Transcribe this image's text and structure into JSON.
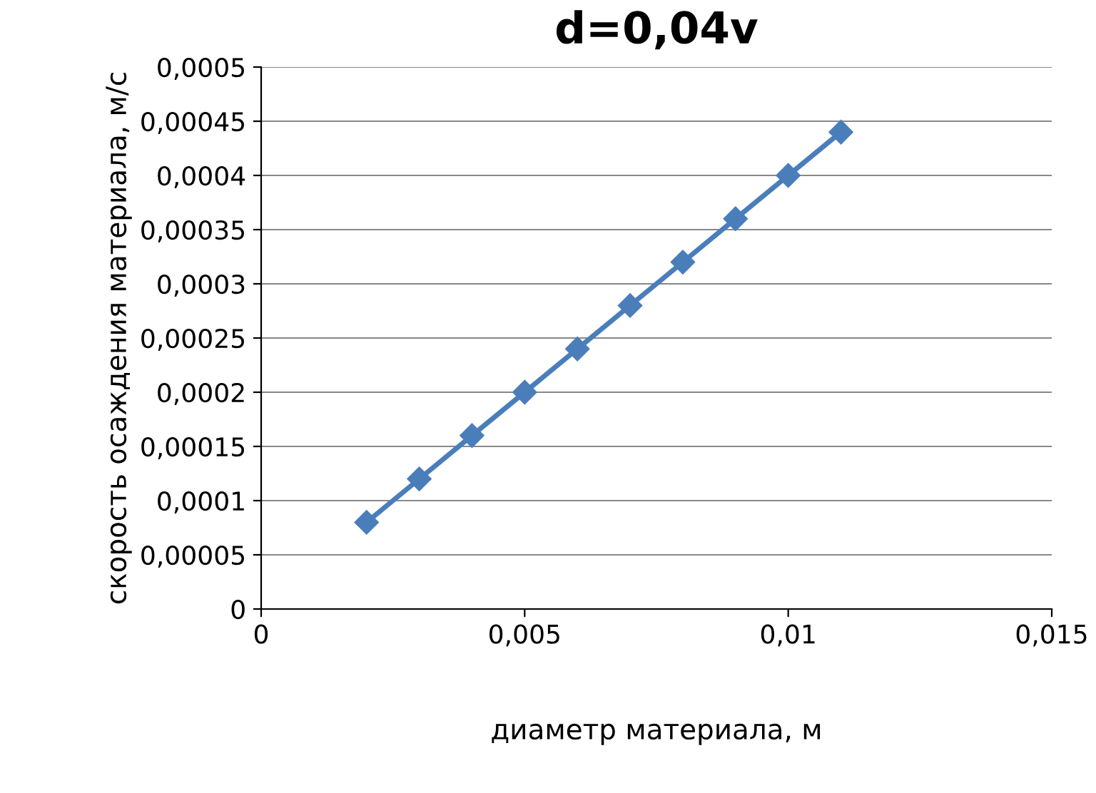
{
  "chart_data": {
    "type": "line",
    "title": "d=0,04v",
    "xlabel": "диаметр материала, м",
    "ylabel": "скорость осаждения материала, м/с",
    "series": [
      {
        "color": "#4a7ebb",
        "x": [
          0.002,
          0.003,
          0.004,
          0.005,
          0.006,
          0.007,
          0.008,
          0.009,
          0.01,
          0.011
        ],
        "values": [
          8e-05,
          0.00012,
          0.00016,
          0.0002,
          0.00024,
          0.00028,
          0.00032,
          0.00036,
          0.0004,
          0.00044
        ]
      }
    ],
    "xlim": [
      0,
      0.015
    ],
    "ylim": [
      0,
      0.0005
    ],
    "xticks": [
      0,
      {
        "value": 0.005,
        "label": "0,005"
      },
      {
        "value": 0.01,
        "label": "0,01"
      },
      {
        "value": 0.015,
        "label": "0,015"
      }
    ],
    "yticks": [
      0,
      {
        "value": 5e-05,
        "label": "0,00005"
      },
      {
        "value": 0.0001,
        "label": "0,0001"
      },
      {
        "value": 0.00015,
        "label": "0,00015"
      },
      {
        "value": 0.0002,
        "label": "0,0002"
      },
      {
        "value": 0.00025,
        "label": "0,00025"
      },
      {
        "value": 0.0003,
        "label": "0,0003"
      },
      {
        "value": 0.00035,
        "label": "0,00035"
      },
      {
        "value": 0.0004,
        "label": "0,0004"
      },
      {
        "value": 0.00045,
        "label": "0,00045"
      },
      {
        "value": 0.0005,
        "label": "0,0005"
      }
    ],
    "grid": "y",
    "marker": "diamond",
    "line_style": "solid"
  }
}
